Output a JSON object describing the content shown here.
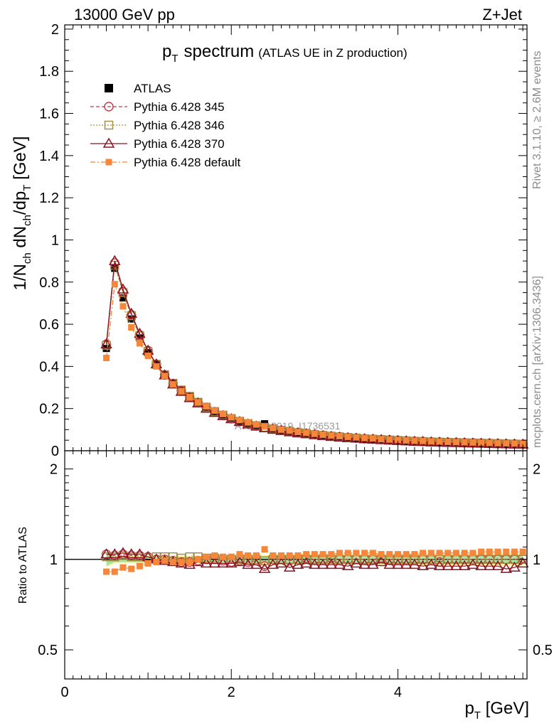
{
  "header": {
    "left": "13000 GeV pp",
    "right": "Z+Jet"
  },
  "side_labels": {
    "top": "Rivet 3.1.10, ≥ 2.6M events",
    "bottom": "mcplots.cern.ch [arXiv:1306.3436]"
  },
  "watermark": "ATLAS_2019_I1736531",
  "colors": {
    "ATLAS": "#000000",
    "p345": "#c0394b",
    "p346": "#a08a3c",
    "p370": "#8b1220",
    "default": "#f5863a",
    "band_yellow": "#fff59d",
    "band_green": "#a8e6a1"
  },
  "chart_data": [
    {
      "type": "line",
      "title": "p_T spectrum",
      "title_main": "p",
      "title_sub": "T",
      "title_word": "spectrum",
      "title_note": "(ATLAS UE in Z production)",
      "ylabel": "1/N_ch dN_ch/dp_T [GeV]",
      "ylabel_parts": [
        "1/N",
        "ch",
        " dN",
        "ch",
        "/dp",
        "T",
        " [GeV]"
      ],
      "xlim": [
        0,
        5.55
      ],
      "ylim": [
        0,
        2.02
      ],
      "yticks": [
        "0",
        "0.2",
        "0.4",
        "0.6",
        "0.8",
        "1",
        "1.2",
        "1.4",
        "1.6",
        "1.8",
        "2"
      ],
      "x": [
        0.5,
        0.6,
        0.7,
        0.8,
        0.9,
        1.0,
        1.1,
        1.2,
        1.3,
        1.4,
        1.5,
        1.6,
        1.7,
        1.8,
        1.9,
        2.0,
        2.1,
        2.2,
        2.3,
        2.4,
        2.5,
        2.6,
        2.7,
        2.8,
        2.9,
        3.0,
        3.1,
        3.2,
        3.3,
        3.4,
        3.5,
        3.6,
        3.7,
        3.8,
        3.9,
        4.0,
        4.1,
        4.2,
        4.3,
        4.4,
        4.5,
        4.6,
        4.7,
        4.8,
        4.9,
        5.0,
        5.1,
        5.2,
        5.3,
        5.4,
        5.5
      ],
      "series": [
        {
          "name": "ATLAS",
          "marker": "square-filled",
          "values": [
            0.485,
            0.865,
            0.725,
            0.625,
            0.535,
            0.465,
            0.41,
            0.36,
            0.32,
            0.29,
            0.26,
            0.23,
            0.205,
            0.185,
            0.17,
            0.155,
            0.14,
            0.13,
            0.12,
            0.128,
            0.104,
            0.097,
            0.092,
            0.086,
            0.082,
            0.077,
            0.073,
            0.069,
            0.066,
            0.063,
            0.06,
            0.057,
            0.055,
            0.053,
            0.051,
            0.049,
            0.047,
            0.045,
            0.044,
            0.042,
            0.041,
            0.04,
            0.039,
            0.038,
            0.037,
            0.036,
            0.035,
            0.034,
            0.033,
            0.032,
            0.031
          ]
        },
        {
          "name": "Pythia 6.428 345",
          "marker": "circle-open",
          "values": [
            0.505,
            0.89,
            0.755,
            0.645,
            0.55,
            0.475,
            0.41,
            0.36,
            0.318,
            0.285,
            0.255,
            0.228,
            0.205,
            0.185,
            0.168,
            0.152,
            0.139,
            0.128,
            0.118,
            0.11,
            0.103,
            0.097,
            0.091,
            0.086,
            0.082,
            0.077,
            0.073,
            0.069,
            0.066,
            0.063,
            0.06,
            0.057,
            0.055,
            0.053,
            0.051,
            0.049,
            0.047,
            0.045,
            0.044,
            0.042,
            0.041,
            0.04,
            0.039,
            0.038,
            0.037,
            0.036,
            0.035,
            0.034,
            0.033,
            0.032,
            0.031
          ]
        },
        {
          "name": "Pythia 6.428 346",
          "marker": "square-open",
          "values": [
            0.5,
            0.88,
            0.75,
            0.64,
            0.545,
            0.47,
            0.41,
            0.36,
            0.32,
            0.288,
            0.258,
            0.23,
            0.207,
            0.186,
            0.169,
            0.153,
            0.14,
            0.129,
            0.119,
            0.111,
            0.104,
            0.097,
            0.092,
            0.086,
            0.082,
            0.077,
            0.073,
            0.069,
            0.066,
            0.063,
            0.06,
            0.057,
            0.055,
            0.053,
            0.051,
            0.049,
            0.047,
            0.045,
            0.044,
            0.042,
            0.041,
            0.04,
            0.039,
            0.038,
            0.037,
            0.036,
            0.035,
            0.034,
            0.033,
            0.032,
            0.031
          ]
        },
        {
          "name": "Pythia 6.428 370",
          "marker": "triangle-open",
          "values": [
            0.505,
            0.9,
            0.765,
            0.65,
            0.555,
            0.475,
            0.41,
            0.358,
            0.315,
            0.28,
            0.25,
            0.225,
            0.2,
            0.18,
            0.165,
            0.15,
            0.137,
            0.125,
            0.115,
            0.107,
            0.1,
            0.094,
            0.088,
            0.083,
            0.079,
            0.074,
            0.07,
            0.066,
            0.063,
            0.06,
            0.058,
            0.055,
            0.053,
            0.051,
            0.049,
            0.047,
            0.045,
            0.043,
            0.042,
            0.04,
            0.039,
            0.038,
            0.037,
            0.036,
            0.035,
            0.034,
            0.033,
            0.032,
            0.031,
            0.03,
            0.03
          ]
        },
        {
          "name": "Pythia 6.428 default",
          "marker": "square-small-filled",
          "values": [
            0.44,
            0.79,
            0.685,
            0.585,
            0.51,
            0.45,
            0.4,
            0.355,
            0.315,
            0.283,
            0.255,
            0.23,
            0.21,
            0.19,
            0.174,
            0.158,
            0.145,
            0.134,
            0.124,
            0.115,
            0.107,
            0.1,
            0.095,
            0.089,
            0.085,
            0.08,
            0.076,
            0.072,
            0.069,
            0.066,
            0.063,
            0.06,
            0.058,
            0.055,
            0.053,
            0.051,
            0.049,
            0.047,
            0.046,
            0.044,
            0.043,
            0.042,
            0.041,
            0.04,
            0.039,
            0.038,
            0.037,
            0.036,
            0.035,
            0.034,
            0.033
          ]
        }
      ]
    },
    {
      "type": "line",
      "title": "Ratio to ATLAS",
      "ylabel": "Ratio to ATLAS",
      "xlabel": "p_T [GeV]",
      "xlabel_main": "p",
      "xlabel_sub": "T",
      "xlabel_unit": " [GeV]",
      "ylim": [
        0.4,
        2.3
      ],
      "log_y": true,
      "yticks": [
        "0.5",
        "1",
        "2"
      ],
      "xticks": [
        "0",
        "2",
        "4"
      ],
      "band_halfwidth_inner": [
        0.05,
        0.02,
        0.02,
        0.02,
        0.02,
        0.02,
        0.02,
        0.02,
        0.02,
        0.02,
        0.02,
        0.02,
        0.02,
        0.02,
        0.02,
        0.02,
        0.02,
        0.02,
        0.02,
        0.02,
        0.02,
        0.025,
        0.025,
        0.025,
        0.025,
        0.025,
        0.025,
        0.025,
        0.025,
        0.025,
        0.025,
        0.025,
        0.025,
        0.025,
        0.025,
        0.025,
        0.025,
        0.025,
        0.025,
        0.025,
        0.025,
        0.025,
        0.025,
        0.025,
        0.025,
        0.03,
        0.03,
        0.03,
        0.03,
        0.03,
        0.03
      ],
      "band_halfwidth_outer": [
        0.06,
        0.03,
        0.03,
        0.03,
        0.03,
        0.03,
        0.03,
        0.03,
        0.03,
        0.03,
        0.03,
        0.03,
        0.03,
        0.035,
        0.035,
        0.035,
        0.035,
        0.035,
        0.035,
        0.035,
        0.04,
        0.04,
        0.04,
        0.04,
        0.04,
        0.04,
        0.04,
        0.04,
        0.04,
        0.04,
        0.04,
        0.04,
        0.04,
        0.04,
        0.045,
        0.045,
        0.045,
        0.045,
        0.045,
        0.045,
        0.045,
        0.045,
        0.045,
        0.045,
        0.045,
        0.05,
        0.05,
        0.05,
        0.05,
        0.05,
        0.05
      ],
      "series": [
        {
          "name": "Pythia 6.428 345",
          "values": [
            1.04,
            1.03,
            1.04,
            1.03,
            1.03,
            1.02,
            1.0,
            1.0,
            0.99,
            0.98,
            0.98,
            0.99,
            1.0,
            1.0,
            0.99,
            0.98,
            0.99,
            0.98,
            0.99,
            0.95,
            1.0,
            1.0,
            0.99,
            1.0,
            1.01,
            1.0,
            1.0,
            1.01,
            1.0,
            1.0,
            1.0,
            1.0,
            1.0,
            1.01,
            1.0,
            1.0,
            1.0,
            1.0,
            1.0,
            1.0,
            0.98,
            1.0,
            1.0,
            1.0,
            1.0,
            1.0,
            1.0,
            1.0,
            1.0,
            1.0,
            1.01
          ]
        },
        {
          "name": "Pythia 6.428 346",
          "values": [
            1.02,
            1.02,
            1.03,
            1.02,
            1.02,
            1.01,
            1.02,
            1.02,
            1.02,
            1.01,
            1.02,
            1.02,
            1.01,
            1.01,
            1.0,
            1.0,
            1.0,
            1.0,
            1.0,
            0.99,
            1.0,
            1.0,
            1.0,
            1.0,
            1.0,
            1.0,
            1.0,
            1.0,
            1.0,
            1.0,
            1.0,
            1.0,
            1.0,
            1.0,
            1.0,
            1.0,
            1.0,
            1.0,
            1.0,
            1.0,
            1.0,
            1.0,
            1.0,
            1.0,
            1.0,
            1.0,
            1.0,
            1.0,
            1.0,
            1.0,
            1.0
          ]
        },
        {
          "name": "Pythia 6.428 370",
          "values": [
            1.04,
            1.04,
            1.05,
            1.04,
            1.04,
            1.02,
            1.0,
            0.99,
            0.98,
            0.97,
            0.96,
            0.98,
            0.97,
            0.97,
            0.97,
            0.97,
            0.98,
            0.96,
            0.96,
            0.93,
            0.96,
            0.97,
            0.94,
            0.96,
            0.97,
            0.96,
            0.96,
            0.96,
            0.96,
            0.95,
            0.97,
            0.96,
            0.96,
            0.98,
            0.96,
            0.96,
            0.96,
            0.96,
            0.95,
            0.96,
            0.95,
            0.95,
            0.95,
            0.95,
            0.96,
            0.95,
            0.95,
            0.95,
            0.93,
            0.94,
            0.97
          ]
        },
        {
          "name": "Pythia 6.428 default",
          "values": [
            0.91,
            0.91,
            0.94,
            0.93,
            0.95,
            0.97,
            0.98,
            0.99,
            0.98,
            0.98,
            0.98,
            1.0,
            1.02,
            1.03,
            1.02,
            1.02,
            1.04,
            1.03,
            1.03,
            1.08,
            1.03,
            1.03,
            1.03,
            1.03,
            1.04,
            1.04,
            1.04,
            1.04,
            1.05,
            1.05,
            1.05,
            1.05,
            1.05,
            1.04,
            1.04,
            1.04,
            1.04,
            1.04,
            1.05,
            1.05,
            1.05,
            1.05,
            1.05,
            1.05,
            1.05,
            1.06,
            1.06,
            1.06,
            1.06,
            1.06,
            1.06
          ]
        }
      ]
    }
  ]
}
